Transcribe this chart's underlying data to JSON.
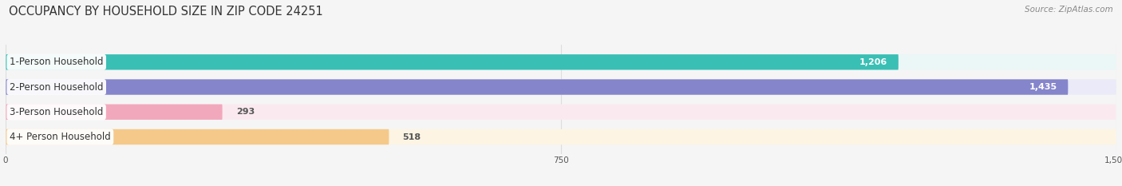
{
  "title": "OCCUPANCY BY HOUSEHOLD SIZE IN ZIP CODE 24251",
  "source": "Source: ZipAtlas.com",
  "categories": [
    "1-Person Household",
    "2-Person Household",
    "3-Person Household",
    "4+ Person Household"
  ],
  "values": [
    1206,
    1435,
    293,
    518
  ],
  "bar_colors": [
    "#3abfb5",
    "#8585cc",
    "#f2a8bc",
    "#f5c98a"
  ],
  "bar_bg_colors": [
    "#eaf7f6",
    "#eaeaf8",
    "#faeaef",
    "#fdf4e3"
  ],
  "xlim": [
    0,
    1500
  ],
  "xticks": [
    0,
    750,
    1500
  ],
  "value_label_threshold": 700,
  "background_color": "#f5f5f5",
  "bar_height": 0.62,
  "title_fontsize": 10.5,
  "label_fontsize": 8.5,
  "value_fontsize": 8,
  "source_fontsize": 7.5,
  "grid_color": "#dddddd",
  "text_color": "#555555",
  "title_color": "#333333"
}
